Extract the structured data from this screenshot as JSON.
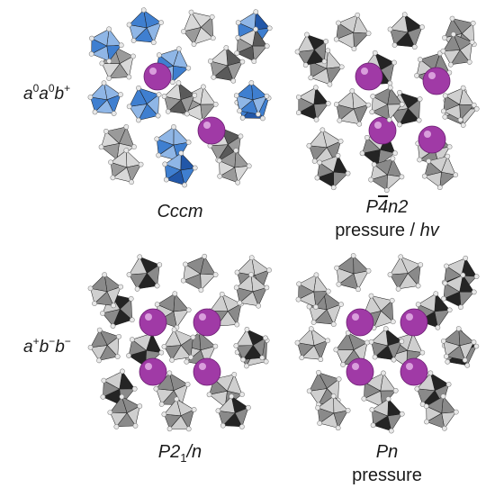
{
  "rows": [
    {
      "label": {
        "base": "a",
        "parts": [
          {
            "t": "a"
          },
          {
            "t": "0",
            "sup": true
          },
          {
            "t": "a"
          },
          {
            "t": "0",
            "sup": true
          },
          {
            "t": "b"
          },
          {
            "t": "+",
            "sup": true
          }
        ]
      }
    },
    {
      "label": {
        "base": "a",
        "parts": [
          {
            "t": "a"
          },
          {
            "t": "+",
            "sup": true
          },
          {
            "t": "b"
          },
          {
            "t": "−",
            "sup": true
          },
          {
            "t": "b"
          },
          {
            "t": "−",
            "sup": true
          }
        ]
      }
    }
  ],
  "panels": [
    {
      "id": "cccm",
      "scheme": "blue",
      "space_group": [
        {
          "t": "Cccm"
        }
      ],
      "condition": []
    },
    {
      "id": "p4n2",
      "scheme": "dark",
      "space_group": [
        {
          "t": "P"
        },
        {
          "t": "4",
          "bar": true
        },
        {
          "t": "n2"
        }
      ],
      "condition": [
        {
          "t": "pressure / "
        },
        {
          "t": "hv",
          "italic": true
        }
      ]
    },
    {
      "id": "p21n",
      "scheme": "dark",
      "space_group": [
        {
          "t": "P2"
        },
        {
          "t": "1",
          "sub": true
        },
        {
          "t": "/n"
        }
      ],
      "condition": []
    },
    {
      "id": "pn",
      "scheme": "dark",
      "space_group": [
        {
          "t": "Pn"
        }
      ],
      "condition": [
        {
          "t": "pressure"
        }
      ]
    }
  ],
  "colors": {
    "blue_dark": "#2257a8",
    "blue_mid": "#3f7fd0",
    "blue_light": "#8fb6e6",
    "gray_dark": "#242424",
    "gray_mid": "#8a8a8a",
    "gray_light": "#cfcfcf",
    "cation": "#a03aa6",
    "anion": "#e8e8e8"
  }
}
